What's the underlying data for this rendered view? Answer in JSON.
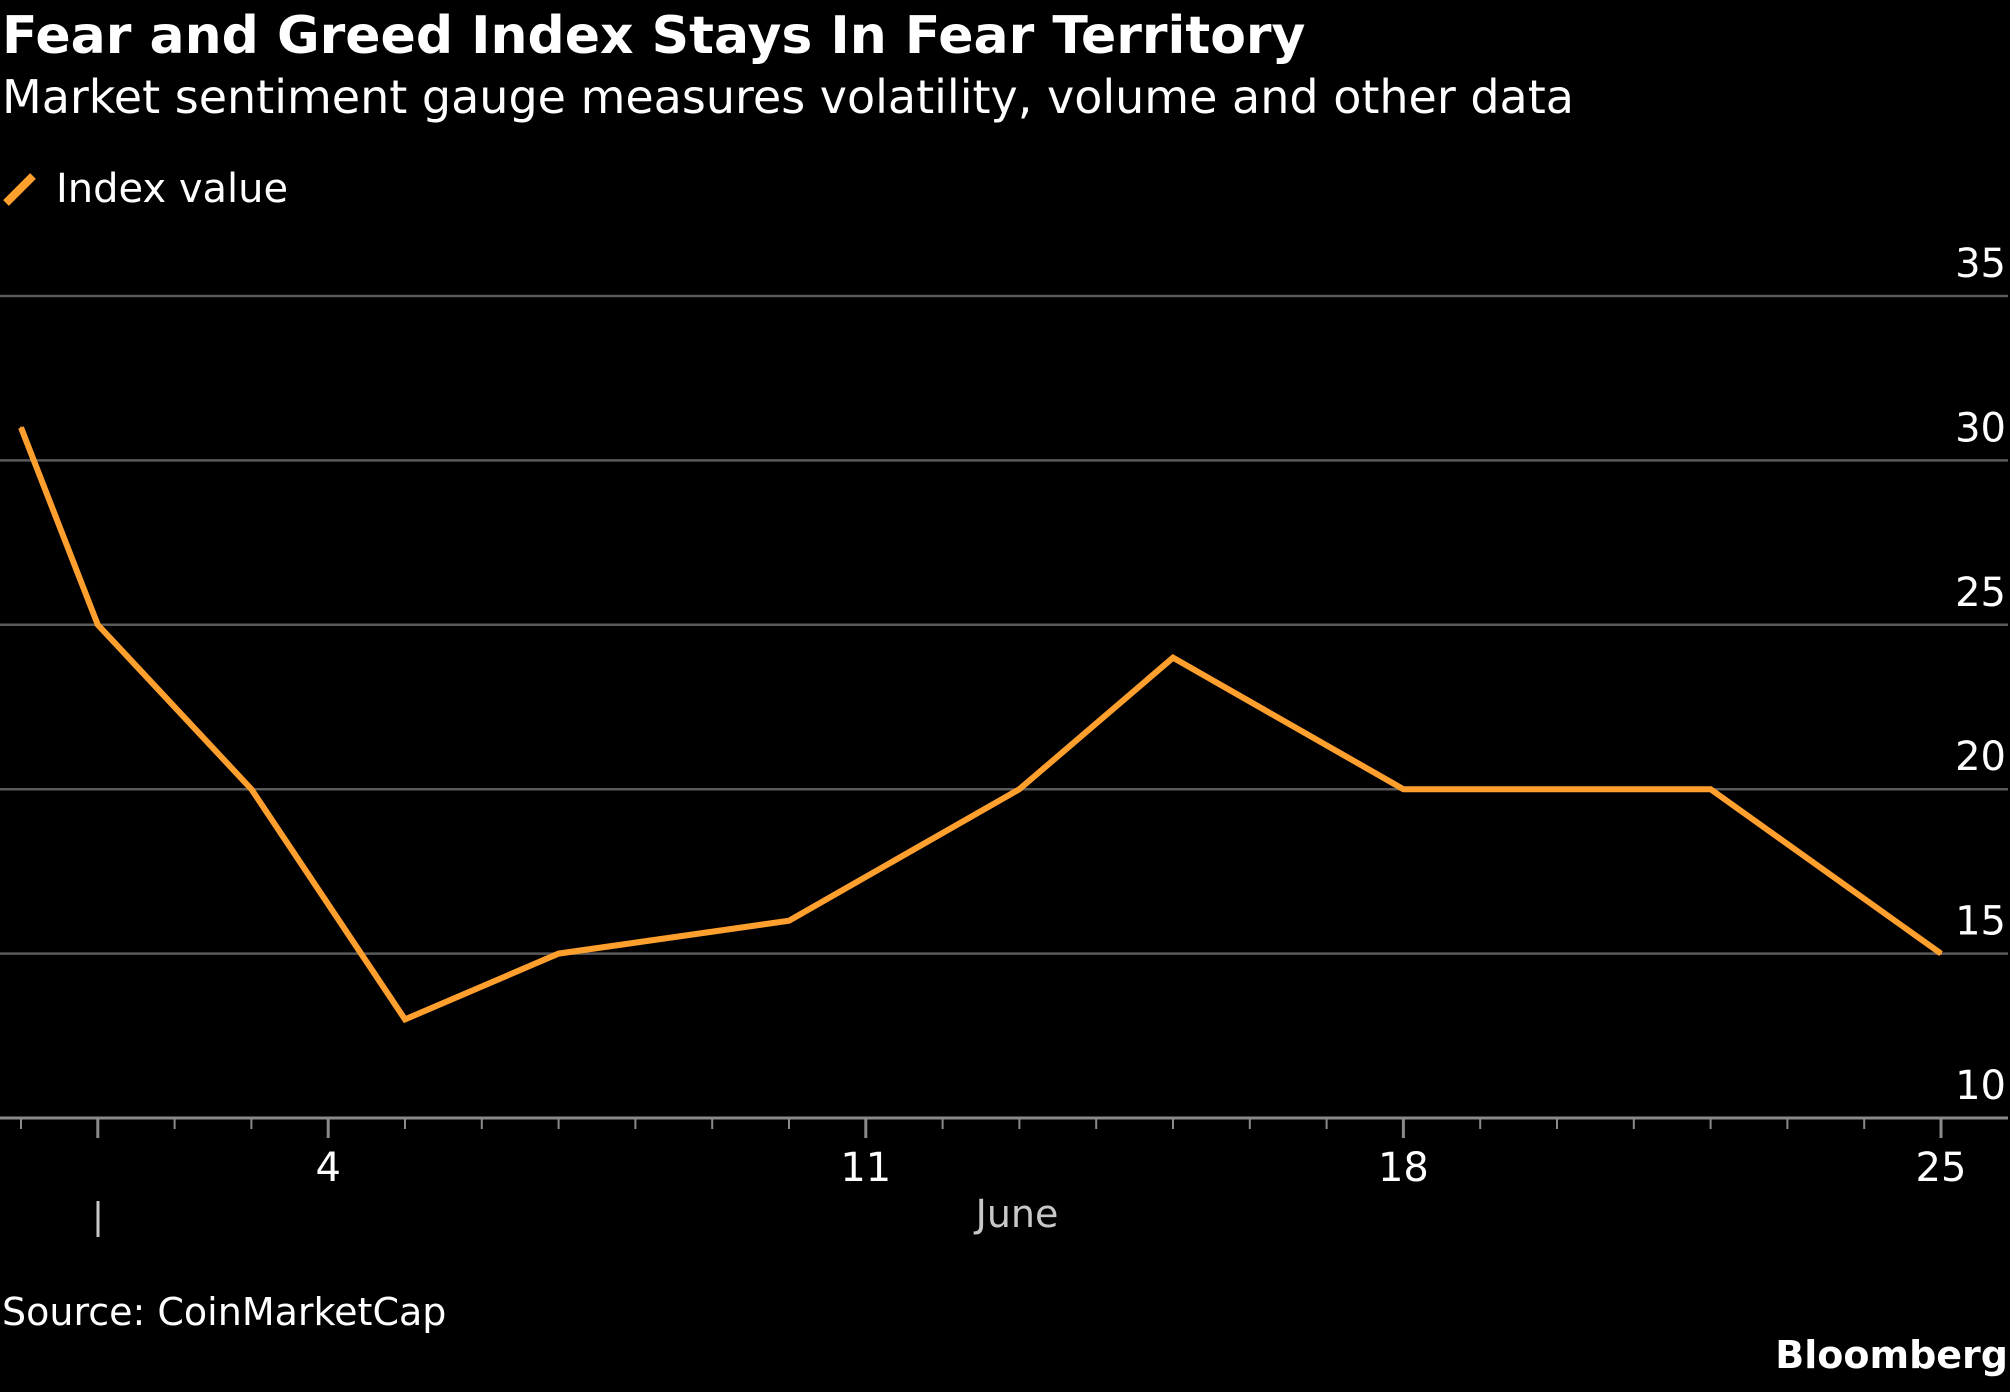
{
  "chart_data": {
    "type": "line",
    "title": "Fear and Greed Index Stays In Fear Territory",
    "subtitle": "Market sentiment gauge measures volatility, volume and other data",
    "xlabel": "June",
    "ylabel": "",
    "x_dates": [
      "2023-05-31",
      "2023-06-01",
      "2023-06-03",
      "2023-06-05",
      "2023-06-07",
      "2023-06-10",
      "2023-06-13",
      "2023-06-15",
      "2023-06-18",
      "2023-06-22",
      "2023-06-25"
    ],
    "series": [
      {
        "name": "Index value",
        "values": [
          31,
          25,
          20,
          13,
          15,
          16,
          20,
          24,
          20,
          20,
          15
        ],
        "color": "#ff9f2e"
      }
    ],
    "x_ticks": [
      {
        "date": "2023-06-04",
        "label": "4"
      },
      {
        "date": "2023-06-11",
        "label": "11"
      },
      {
        "date": "2023-06-18",
        "label": "18"
      },
      {
        "date": "2023-06-25",
        "label": "25"
      }
    ],
    "x_range": [
      "2023-05-31",
      "2023-06-26"
    ],
    "y_ticks": [
      10,
      15,
      20,
      25,
      30,
      35
    ],
    "ylim": [
      10,
      35
    ],
    "grid": true,
    "y_axis_position": "right",
    "legend_position": "top-left",
    "source": "Source: CoinMarketCap",
    "brand": "Bloomberg",
    "colors": {
      "background": "#000000",
      "text": "#ffffff",
      "gridline": "#5a5a5a",
      "axis": "#8a8a8a",
      "month_label": "#c8c8c8",
      "series": "#ff9f2e"
    }
  }
}
